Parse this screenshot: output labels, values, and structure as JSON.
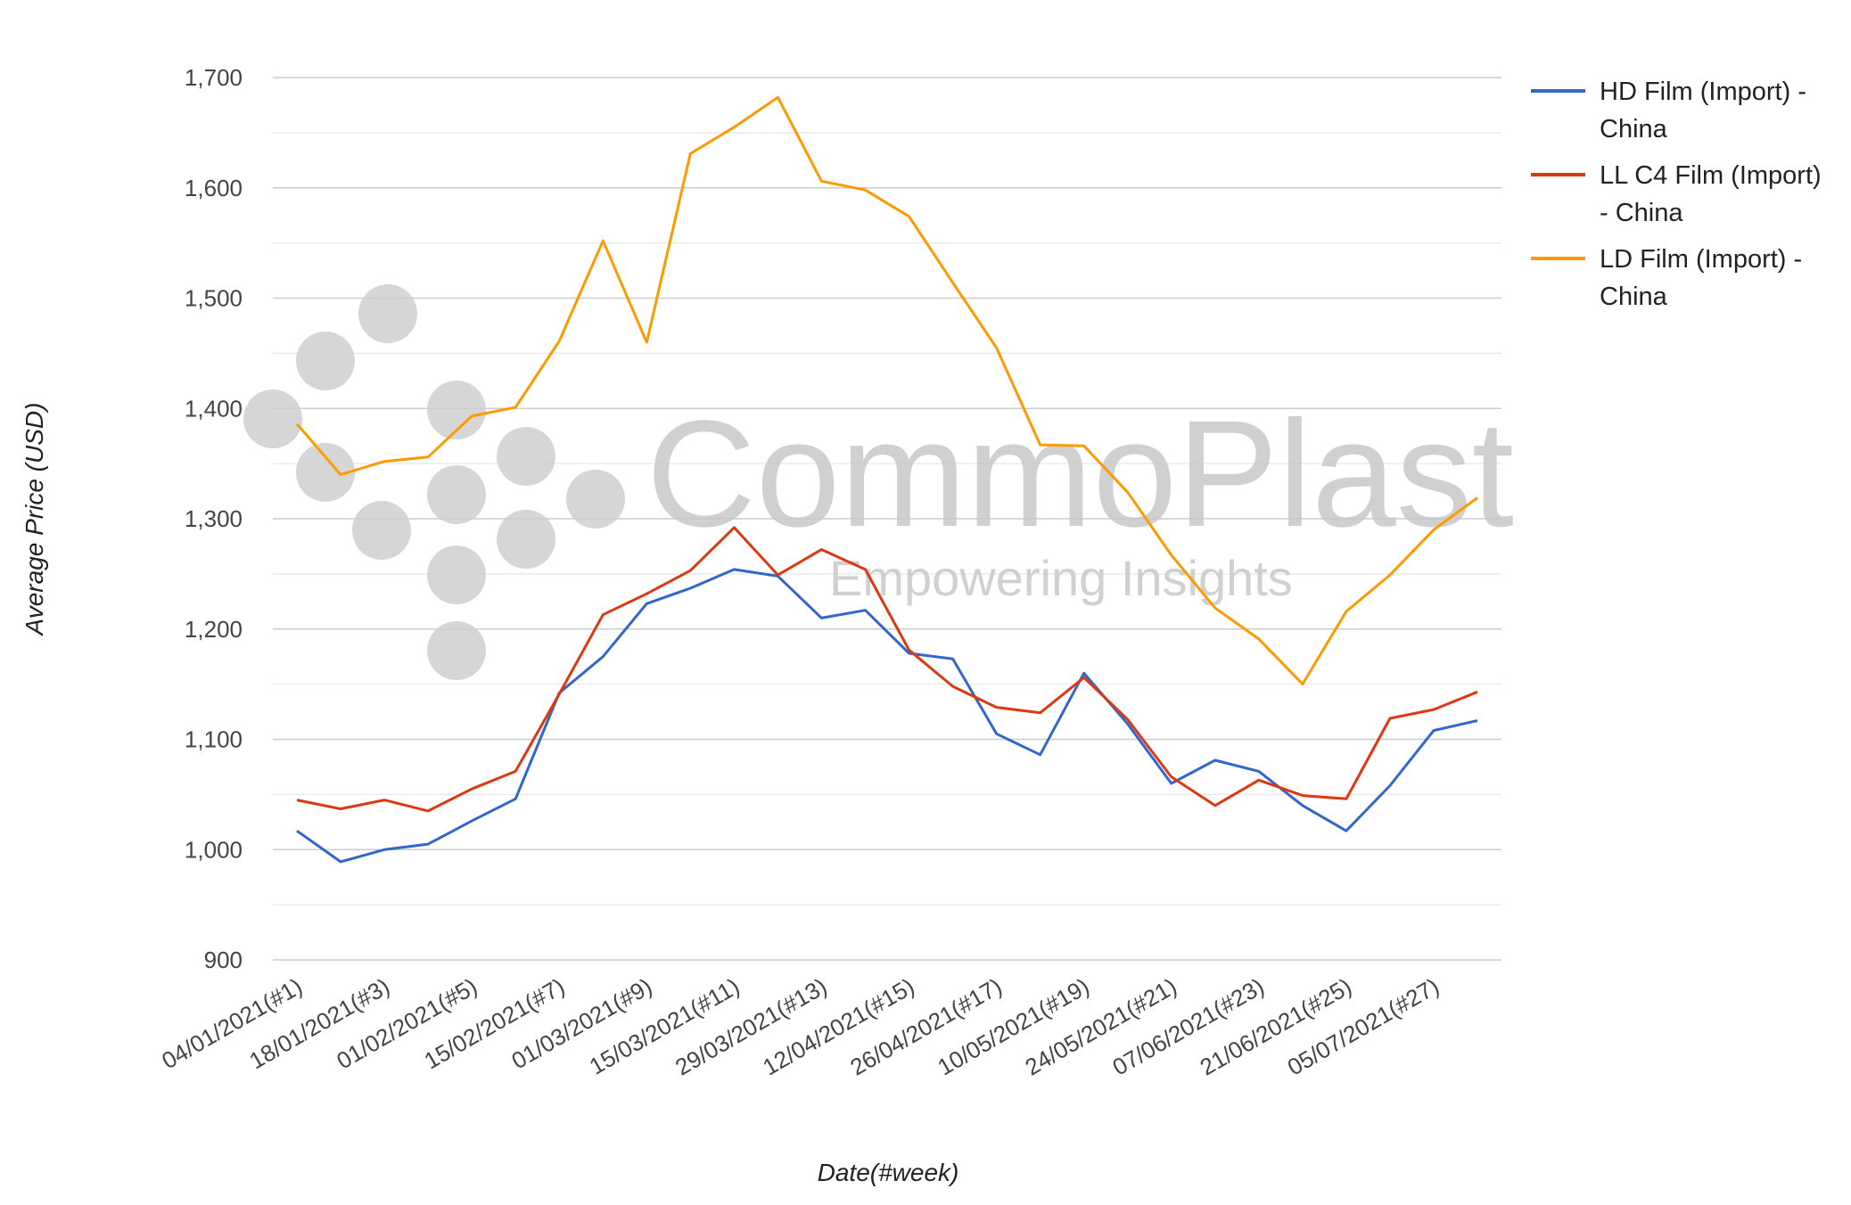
{
  "chart_data": {
    "type": "line",
    "title": "",
    "xlabel": "Date(#week)",
    "ylabel": "Average Price (USD)",
    "ylim": [
      900,
      1700
    ],
    "yticks": [
      900,
      1000,
      1100,
      1200,
      1300,
      1400,
      1500,
      1600,
      1700
    ],
    "ytick_labels": [
      "900",
      "1,000",
      "1,100",
      "1,200",
      "1,300",
      "1,400",
      "1,500",
      "1,600",
      "1,700"
    ],
    "x": [
      1,
      2,
      3,
      4,
      5,
      6,
      7,
      8,
      9,
      10,
      11,
      12,
      13,
      14,
      15,
      16,
      17,
      18,
      19,
      20,
      21,
      22,
      23,
      24,
      25,
      26,
      27,
      28
    ],
    "xticks": [
      1,
      3,
      5,
      7,
      9,
      11,
      13,
      15,
      17,
      19,
      21,
      23,
      25,
      27
    ],
    "xtick_labels": [
      "04/01/2021(#1)",
      "18/01/2021(#3)",
      "01/02/2021(#5)",
      "15/02/2021(#7)",
      "01/03/2021(#9)",
      "15/03/2021(#11)",
      "29/03/2021(#13)",
      "12/04/2021(#15)",
      "26/04/2021(#17)",
      "10/05/2021(#19)",
      "24/05/2021(#21)",
      "07/06/2021(#23)",
      "21/06/2021(#25)",
      "05/07/2021(#27)"
    ],
    "grid": true,
    "legend_position": "right",
    "series": [
      {
        "name": "HD Film (Import) - China",
        "legend_lines": [
          "HD Film (Import) -",
          "China"
        ],
        "color": "#3366cc",
        "values": [
          1017,
          989,
          1000,
          1005,
          1026,
          1046,
          1142,
          1175,
          1223,
          1237,
          1254,
          1248,
          1210,
          1217,
          1178,
          1173,
          1105,
          1086,
          1160,
          1114,
          1060,
          1081,
          1071,
          1040,
          1017,
          1058,
          1108,
          1117
        ]
      },
      {
        "name": "LL C4 Film (Import) - China",
        "legend_lines": [
          "LL C4 Film (Import)",
          "- China"
        ],
        "color": "#dc3912",
        "values": [
          1045,
          1037,
          1045,
          1035,
          1055,
          1071,
          1141,
          1213,
          1232,
          1253,
          1292,
          1249,
          1272,
          1254,
          1181,
          1148,
          1129,
          1124,
          1156,
          1118,
          1066,
          1040,
          1063,
          1049,
          1046,
          1119,
          1127,
          1143
        ]
      },
      {
        "name": "LD Film (Import) - China",
        "legend_lines": [
          "LD Film (Import) -",
          "China"
        ],
        "color": "#ff9900",
        "values": [
          1386,
          1340,
          1352,
          1356,
          1393,
          1401,
          1461,
          1552,
          1460,
          1631,
          1655,
          1682,
          1606,
          1598,
          1574,
          1514,
          1455,
          1367,
          1366,
          1324,
          1267,
          1219,
          1191,
          1150,
          1216,
          1249,
          1290,
          1319
        ]
      }
    ]
  },
  "watermark": {
    "brand": "CommoPlast",
    "tagline": "Empowering Insights"
  }
}
